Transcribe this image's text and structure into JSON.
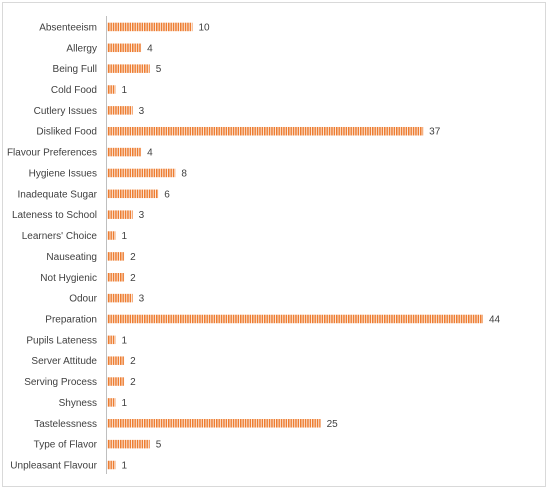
{
  "chart_data": {
    "type": "bar",
    "orientation": "horizontal",
    "title": "",
    "xlabel": "",
    "ylabel": "",
    "categories": [
      "Absenteeism",
      "Allergy",
      "Being Full",
      "Cold Food",
      "Cutlery Issues",
      "Disliked Food",
      "Flavour Preferences",
      "Hygiene Issues",
      "Inadequate Sugar",
      "Lateness to School",
      "Learners' Choice",
      "Nauseating",
      "Not Hygienic",
      "Odour",
      "Preparation",
      "Pupils Lateness",
      "Server Attitude",
      "Serving Process",
      "Shyness",
      "Tastelessness",
      "Type of Flavor",
      "Unpleasant Flavour"
    ],
    "values": [
      10,
      4,
      5,
      1,
      3,
      37,
      4,
      8,
      6,
      3,
      1,
      2,
      2,
      3,
      44,
      1,
      2,
      2,
      1,
      25,
      5,
      1
    ],
    "xlim": [
      0,
      44
    ],
    "grid": false,
    "legend": "none",
    "data_labels": true,
    "bar_color": "#ed7d31",
    "bar_pattern": "vertical-stripes",
    "axis_color": "#bfbfbf",
    "text_color": "#404040"
  }
}
